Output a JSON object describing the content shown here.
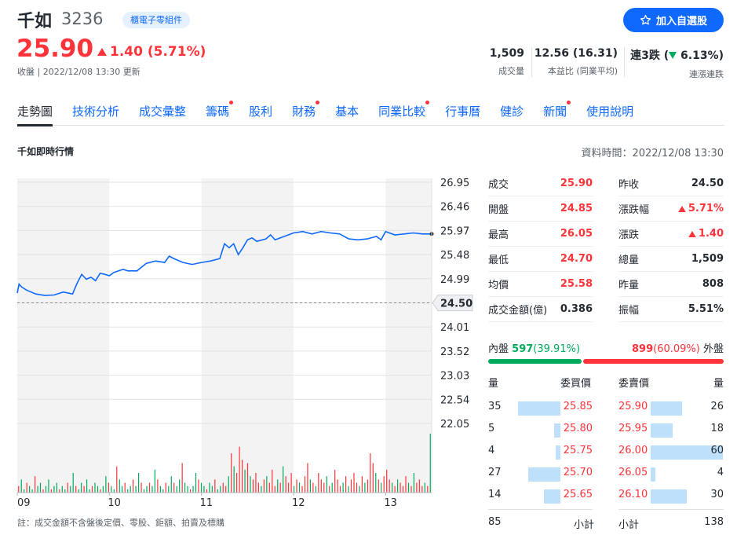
{
  "stock": {
    "name": "千如",
    "code": "3236",
    "sector": "櫃電子零組件",
    "add_watchlist": "加入自選股",
    "price": "25.90",
    "change": "1.40 (5.71%)",
    "close_info": "收盤 | 2022/12/08 13:30 更新"
  },
  "stats": {
    "volume": {
      "value": "1,509",
      "label": "成交量"
    },
    "pe": {
      "value": "12.56 (16.31)",
      "label": "本益比 (同業平均)"
    },
    "streak": {
      "value_prefix": "連3跌 (",
      "value_pct": "6.13%",
      "value_suffix": ")",
      "label": "連漲連跌"
    }
  },
  "tabs": [
    {
      "label": "走勢圖",
      "active": true,
      "dot": false
    },
    {
      "label": "技術分析",
      "active": false,
      "dot": false
    },
    {
      "label": "成交彙整",
      "active": false,
      "dot": false
    },
    {
      "label": "籌碼",
      "active": false,
      "dot": true
    },
    {
      "label": "股利",
      "active": false,
      "dot": false
    },
    {
      "label": "財務",
      "active": false,
      "dot": true
    },
    {
      "label": "基本",
      "active": false,
      "dot": false
    },
    {
      "label": "同業比較",
      "active": false,
      "dot": true
    },
    {
      "label": "行事曆",
      "active": false,
      "dot": false
    },
    {
      "label": "健診",
      "active": false,
      "dot": false
    },
    {
      "label": "新聞",
      "active": false,
      "dot": true
    },
    {
      "label": "使用說明",
      "active": false,
      "dot": false
    }
  ],
  "section_title": "千如即時行情",
  "data_time": "資料時間：2022/12/08 13:30",
  "footnote": "註：成交金額不含盤後定價、零股、鉅額、拍賣及標購",
  "colors": {
    "up": "#ff333a",
    "down": "#00ab5e",
    "line": "#0f69ff",
    "bar": "#bee0fb"
  },
  "chart_data": {
    "type": "line",
    "x_ticks": [
      "09",
      "10",
      "11",
      "12",
      "13"
    ],
    "y_ticks": [
      "26.95",
      "26.46",
      "25.97",
      "25.48",
      "24.99",
      "24.50",
      "24.01",
      "23.52",
      "23.03",
      "22.54",
      "22.05"
    ],
    "ylim": [
      22.05,
      26.95
    ],
    "reference_price": 24.5,
    "reference_label": "24.50",
    "grid": true,
    "series": [
      {
        "x": [
          9.0,
          9.02,
          9.05,
          9.1,
          9.15,
          9.2,
          9.3,
          9.4,
          9.5,
          9.6,
          9.65,
          9.7,
          9.75,
          9.8,
          9.85,
          9.9,
          9.95,
          10.0,
          10.05,
          10.1,
          10.15,
          10.2,
          10.3,
          10.4,
          10.5,
          10.6,
          10.65,
          10.7,
          10.8,
          10.9,
          10.95,
          11.0,
          11.1,
          11.2,
          11.25,
          11.3,
          11.35,
          11.4,
          11.45,
          11.5,
          11.55,
          11.6,
          11.7,
          11.75,
          11.8,
          11.9,
          12.0,
          12.1,
          12.2,
          12.3,
          12.4,
          12.5,
          12.6,
          12.7,
          12.8,
          12.9,
          12.95,
          13.0,
          13.1,
          13.2,
          13.3,
          13.4,
          13.5
        ],
        "y": [
          24.7,
          24.88,
          24.82,
          24.76,
          24.72,
          24.68,
          24.65,
          24.66,
          24.72,
          24.68,
          24.9,
          25.08,
          24.98,
          25.02,
          24.95,
          25.1,
          25.08,
          25.05,
          25.12,
          25.15,
          25.18,
          25.15,
          25.15,
          25.3,
          25.35,
          25.32,
          25.45,
          25.4,
          25.32,
          25.28,
          25.3,
          25.32,
          25.35,
          25.4,
          25.7,
          25.62,
          25.7,
          25.48,
          25.62,
          25.78,
          25.82,
          25.75,
          25.8,
          25.88,
          25.78,
          25.85,
          25.92,
          25.95,
          25.9,
          25.95,
          25.92,
          25.9,
          25.8,
          25.78,
          25.8,
          25.85,
          25.78,
          25.95,
          25.88,
          25.9,
          25.92,
          25.9,
          25.9
        ]
      }
    ],
    "volume": [
      2,
      4,
      1,
      3,
      2,
      1,
      5,
      2,
      3,
      1,
      2,
      4,
      1,
      2,
      3,
      1,
      2,
      1,
      3,
      2,
      6,
      2,
      1,
      3,
      2,
      4,
      1,
      2,
      3,
      2,
      1,
      2,
      5,
      3,
      2,
      1,
      8,
      4,
      2,
      3,
      1,
      2,
      4,
      2,
      6,
      3,
      1,
      2,
      3,
      2,
      7,
      4,
      2,
      1,
      3,
      2,
      5,
      3,
      2,
      4,
      9,
      3,
      2,
      1,
      2,
      6,
      4,
      3,
      2,
      1,
      3,
      2,
      4,
      1,
      2,
      3,
      2,
      5,
      12,
      8,
      6,
      14,
      10,
      7,
      9,
      5,
      4,
      6,
      3,
      2,
      4,
      5,
      3,
      7,
      2,
      4,
      3,
      8,
      5,
      3,
      6,
      2,
      4,
      3,
      2,
      5,
      9,
      4,
      3,
      2,
      6,
      4,
      3,
      5,
      2,
      3,
      7,
      4,
      2,
      3,
      5,
      2,
      4,
      6,
      3,
      2,
      5,
      3,
      4,
      12,
      9,
      6,
      4,
      3,
      5,
      7,
      4,
      3,
      2,
      4,
      3,
      2,
      5,
      3,
      2,
      6,
      3,
      4,
      2,
      3,
      2,
      18
    ]
  },
  "quote": {
    "left": [
      {
        "label": "成交",
        "value": "25.90",
        "color": "red"
      },
      {
        "label": "開盤",
        "value": "24.85",
        "color": "red"
      },
      {
        "label": "最高",
        "value": "26.05",
        "color": "red"
      },
      {
        "label": "最低",
        "value": "24.70",
        "color": "red"
      },
      {
        "label": "均價",
        "value": "25.58",
        "color": "red"
      },
      {
        "label": "成交金額(億)",
        "value": "0.386",
        "color": "dark"
      }
    ],
    "right": [
      {
        "label": "昨收",
        "value": "24.50",
        "color": "dark",
        "arrow": false
      },
      {
        "label": "漲跌幅",
        "value": "5.71%",
        "color": "red",
        "arrow": true
      },
      {
        "label": "漲跌",
        "value": "1.40",
        "color": "red",
        "arrow": true
      },
      {
        "label": "總量",
        "value": "1,509",
        "color": "dark",
        "arrow": false
      },
      {
        "label": "昨量",
        "value": "808",
        "color": "dark",
        "arrow": false
      },
      {
        "label": "振幅",
        "value": "5.51%",
        "color": "dark",
        "arrow": false
      }
    ]
  },
  "inner_outer": {
    "inner_label": "內盤",
    "inner_value": "597",
    "inner_pct": "(39.91%)",
    "inner_fraction": 0.3991,
    "outer_value": "899",
    "outer_pct": "(60.09%)",
    "outer_label": "外盤"
  },
  "order_book": {
    "headers": {
      "bid_qty": "量",
      "bid_price": "委買價",
      "ask_price": "委賣價",
      "ask_qty": "量"
    },
    "bids": [
      {
        "qty": "35",
        "price": "25.85"
      },
      {
        "qty": "5",
        "price": "25.80"
      },
      {
        "qty": "4",
        "price": "25.75"
      },
      {
        "qty": "27",
        "price": "25.70"
      },
      {
        "qty": "14",
        "price": "25.65"
      }
    ],
    "asks": [
      {
        "price": "25.90",
        "qty": "26"
      },
      {
        "price": "25.95",
        "qty": "18"
      },
      {
        "price": "26.00",
        "qty": "60"
      },
      {
        "price": "26.05",
        "qty": "4"
      },
      {
        "price": "26.10",
        "qty": "30"
      }
    ],
    "bid_total": "85",
    "bid_total_label": "小計",
    "ask_total_label": "小計",
    "ask_total": "138"
  }
}
